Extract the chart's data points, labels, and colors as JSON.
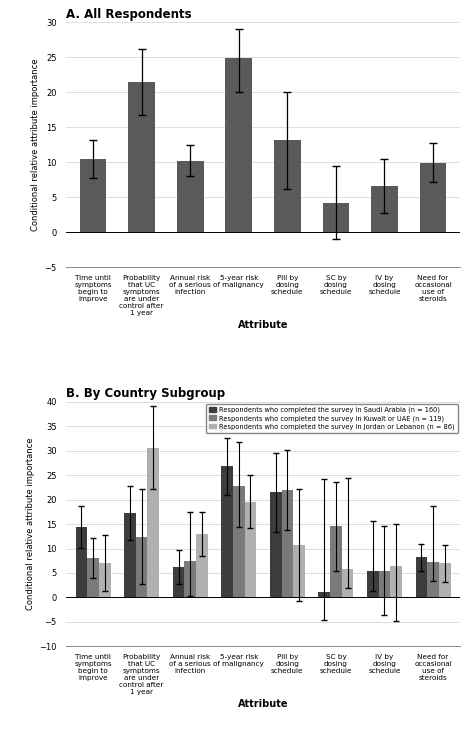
{
  "panel_a": {
    "title": "A. All Respondents",
    "categories": [
      "Time until\nsymptoms\nbegin to\nimprove",
      "Probability\nthat UC\nsymptoms\nare under\ncontrol after\n1 year",
      "Annual risk\nof a serious\ninfection",
      "5-year risk\nof malignancy",
      "Pill by\ndosing\nschedule",
      "SC by\ndosing\nschedule",
      "IV by\ndosing\nschedule",
      "Need for\noccasional\nuse of\nsteroids"
    ],
    "values": [
      10.4,
      21.5,
      10.2,
      24.9,
      13.1,
      4.2,
      6.6,
      9.9
    ],
    "err_low": [
      2.7,
      4.7,
      2.2,
      4.9,
      6.9,
      5.2,
      3.9,
      2.8
    ],
    "err_high": [
      2.7,
      4.7,
      2.2,
      4.1,
      6.9,
      5.2,
      3.9,
      2.8
    ],
    "bar_color": "#5a5a5a",
    "ylabel": "Conditional relative attribute importance",
    "xlabel": "Attribute",
    "ylim": [
      -5,
      30
    ],
    "yticks": [
      -5,
      0,
      5,
      10,
      15,
      20,
      25,
      30
    ]
  },
  "panel_b": {
    "title": "B. By Country Subgroup",
    "categories": [
      "Time until\nsymptoms\nbegin to\nimprove",
      "Probability\nthat UC\nsymptoms\nare under\ncontrol after\n1 year",
      "Annual risk\nof a serious\ninfection",
      "5-year risk\nof malignancy",
      "Pill by\ndosing\nschedule",
      "SC by\ndosing\nschedule",
      "IV by\ndosing\nschedule",
      "Need for\noccasional\nuse of\nsteroids"
    ],
    "values_sa": [
      14.4,
      17.3,
      6.2,
      26.8,
      21.5,
      1.2,
      5.5,
      8.2
    ],
    "err_low_sa": [
      4.3,
      5.5,
      3.4,
      5.8,
      8.1,
      5.8,
      4.1,
      2.8
    ],
    "err_high_sa": [
      4.3,
      5.5,
      3.4,
      5.8,
      8.0,
      23.0,
      10.2,
      2.8
    ],
    "values_ku": [
      8.0,
      12.4,
      7.5,
      22.8,
      22.0,
      14.5,
      5.5,
      7.2
    ],
    "err_low_ku": [
      4.1,
      9.7,
      7.2,
      8.4,
      8.2,
      9.0,
      9.1,
      3.8
    ],
    "err_high_ku": [
      4.1,
      9.7,
      10.0,
      9.0,
      8.2,
      9.0,
      9.0,
      11.5
    ],
    "values_jo": [
      7.0,
      30.6,
      13.0,
      19.6,
      10.7,
      5.8,
      6.5,
      7.0
    ],
    "err_low_jo": [
      5.7,
      8.5,
      4.5,
      5.4,
      11.5,
      3.8,
      11.4,
      3.8
    ],
    "err_high_jo": [
      5.7,
      8.5,
      4.5,
      5.4,
      11.5,
      18.7,
      8.5,
      3.8
    ],
    "color_sa": "#3d3d3d",
    "color_ku": "#7a7a7a",
    "color_jo": "#b0b0b0",
    "ylabel": "Conditional relative attribute importance",
    "xlabel": "Attribute",
    "ylim": [
      -10,
      40
    ],
    "yticks": [
      -10,
      -5,
      0,
      5,
      10,
      15,
      20,
      25,
      30,
      35,
      40
    ],
    "legend_labels": [
      "Respondents who completed the survey in Saudi Arabia (n = 160)",
      "Respondents who completed the survey in Kuwait or UAE (n = 119)",
      "Respondents who completed the survey in Jordan or Lebanon (n = 86)"
    ]
  }
}
